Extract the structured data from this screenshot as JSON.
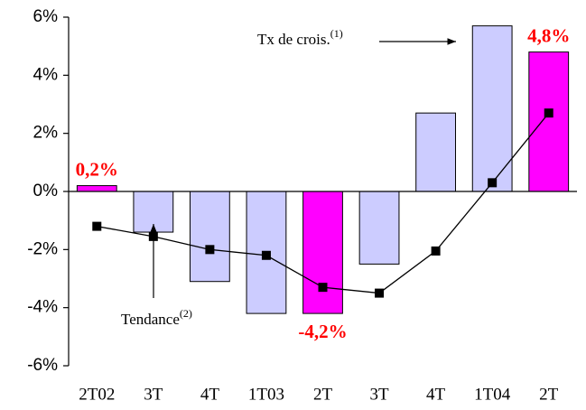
{
  "chart_data": {
    "type": "bar",
    "categories": [
      "2T02",
      "3T",
      "4T",
      "1T03",
      "2T",
      "3T",
      "4T",
      "1T04",
      "2T"
    ],
    "series": [
      {
        "type": "bar",
        "colors": [
          "#ff00ff",
          "#ccccff",
          "#ccccff",
          "#ccccff",
          "#ff00ff",
          "#ccccff",
          "#ccccff",
          "#ccccff",
          "#ff00ff"
        ],
        "values": [
          0.2,
          -1.4,
          -3.1,
          -4.2,
          -4.2,
          -2.5,
          2.7,
          5.7,
          4.8
        ],
        "value_labels": [
          "0,2%",
          null,
          null,
          null,
          "-4,2%",
          null,
          null,
          null,
          "4,8%"
        ]
      },
      {
        "type": "line",
        "color": "#000000",
        "values": [
          -1.2,
          -1.55,
          -2.0,
          -2.2,
          -3.3,
          -3.5,
          -2.05,
          0.3,
          2.7
        ]
      }
    ],
    "ylim": [
      -6,
      6
    ],
    "yticks": [
      {
        "value": 6,
        "label": "6%"
      },
      {
        "value": 4,
        "label": "4%"
      },
      {
        "value": 2,
        "label": "2%"
      },
      {
        "value": 0,
        "label": "0%"
      },
      {
        "value": -2,
        "label": "-2%"
      },
      {
        "value": -4,
        "label": "-4%"
      },
      {
        "value": -6,
        "label": "-6%"
      }
    ],
    "annotations": [
      {
        "text": "Tx de crois.",
        "sup": "(1)"
      },
      {
        "text": "Tendance",
        "sup": "(2)"
      }
    ]
  }
}
